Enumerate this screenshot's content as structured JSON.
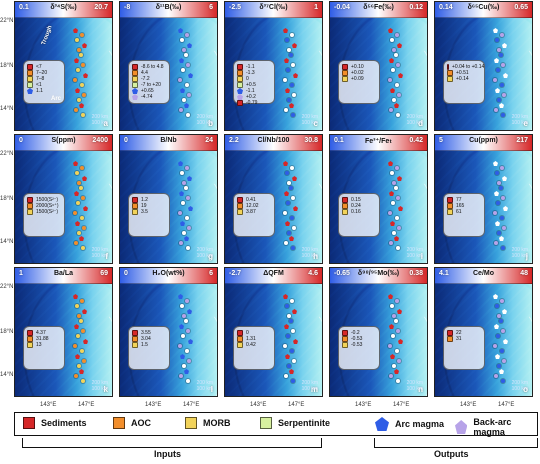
{
  "axes": {
    "lat_labels": [
      "22°N",
      "18°N",
      "14°N"
    ],
    "lon_labels": [
      "143°E",
      "147°E"
    ]
  },
  "panels": [
    {
      "id": "a",
      "title": "δ³⁴S(‰)",
      "min": "0.1",
      "max": "20.7",
      "legend": [
        "<7",
        "7–20",
        "7–8",
        "<1",
        "1.1"
      ],
      "tag": "a",
      "map_labels": [
        "Trough",
        "Arc"
      ]
    },
    {
      "id": "b",
      "title": "δ¹¹B(‰)",
      "min": "-8",
      "max": "6",
      "legend": [
        "-8.6 to 4.8",
        "4.4",
        "-7.2",
        "-7 to +20",
        "+0.65",
        "-4.74"
      ],
      "tag": "b"
    },
    {
      "id": "c",
      "title": "δ³⁷Cl(‰)",
      "min": "-2.5",
      "max": "1",
      "legend": [
        "-1.1",
        "-1.3",
        "0",
        "+0.5",
        "-1.1",
        "+0.2",
        "-0.79"
      ],
      "tag": "c"
    },
    {
      "id": "d",
      "title": "δ⁵⁶Fe(‰)",
      "min": "-0.04",
      "max": "0.12",
      "legend": [
        "+0.10",
        "+0.02",
        "+0.09"
      ],
      "tag": "d"
    },
    {
      "id": "e",
      "title": "δ⁶⁵Cu(‰)",
      "min": "0.14",
      "max": "0.65",
      "legend": [
        "+0.04 to +0.14",
        "+0.51",
        "+0.14"
      ],
      "tag": "e"
    },
    {
      "id": "f",
      "title": "S(ppm)",
      "min": "0",
      "max": "2400",
      "legend": [
        "1500(S²⁻)",
        "2000(S⁶⁺)",
        "1500(S²⁻)"
      ],
      "tag": "f"
    },
    {
      "id": "g",
      "title": "B/Nb",
      "min": "0",
      "max": "24",
      "legend": [
        "1.2",
        "19",
        "3.5"
      ],
      "tag": "g"
    },
    {
      "id": "h",
      "title": "Cl/Nb/100",
      "min": "2.2",
      "max": "30.8",
      "legend": [
        "0.41",
        "12.02",
        "3.87"
      ],
      "tag": "h"
    },
    {
      "id": "i",
      "title": "Fe³⁺/Feₜ",
      "min": "0.1",
      "max": "0.42",
      "legend": [
        "0.15",
        "0.24",
        "0.16"
      ],
      "tag": "i"
    },
    {
      "id": "j",
      "title": "Cu(ppm)",
      "min": "5",
      "max": "217",
      "legend": [
        "77",
        "165",
        "61"
      ],
      "tag": "j"
    },
    {
      "id": "k",
      "title": "Ba/La",
      "min": "1",
      "max": "69",
      "legend": [
        "4.37",
        "31.88",
        "13"
      ],
      "tag": "k"
    },
    {
      "id": "l",
      "title": "H₂O(wt%)",
      "min": "0",
      "max": "6",
      "legend": [
        "3.55",
        "3.04",
        "1.5"
      ],
      "tag": "l"
    },
    {
      "id": "m",
      "title": "ΔQFM",
      "min": "-2.7",
      "max": "4.6",
      "legend": [
        "0",
        "1.31",
        "0.42"
      ],
      "tag": "m"
    },
    {
      "id": "n",
      "title": "δ⁹⁸/⁹⁵Mo(‰)",
      "min": "-0.65",
      "max": "0.38",
      "legend": [
        "-0.2",
        "-0.53",
        "-0.53"
      ],
      "tag": "n"
    },
    {
      "id": "o",
      "title": "Ce/Mo",
      "min": "4.1",
      "max": "48",
      "legend": [
        "22",
        "31"
      ],
      "tag": "o"
    }
  ],
  "legend": {
    "items": [
      {
        "label": "Sediments",
        "kind": "box",
        "color": "#d62728"
      },
      {
        "label": "AOC",
        "kind": "box",
        "color": "#f28e2b"
      },
      {
        "label": "MORB",
        "kind": "box",
        "color": "#f2d35a"
      },
      {
        "label": "Serpentinite",
        "kind": "box",
        "color": "#d7f0a0"
      },
      {
        "label": "Arc magma",
        "kind": "pent",
        "color": "#2f5de6"
      },
      {
        "label": "Back-arc magma",
        "kind": "pent",
        "color": "#b7a3e8"
      }
    ],
    "groups": [
      {
        "label": "Inputs"
      },
      {
        "label": "Outputs"
      }
    ]
  },
  "scalebar": {
    "text": [
      "200 km",
      "100 km"
    ]
  }
}
